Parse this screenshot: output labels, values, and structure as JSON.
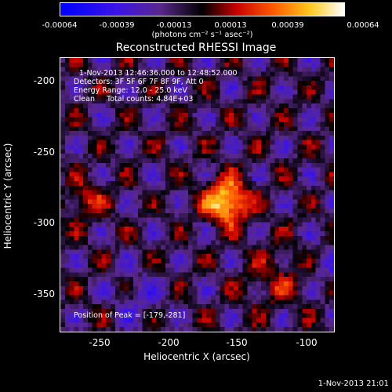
{
  "colorbar": {
    "ticks": [
      "-0.00064",
      "-0.00039",
      "-0.00013",
      "0.00013",
      "0.00039",
      "0.00064"
    ],
    "units": "(photons cm⁻² s⁻¹ asec⁻²)"
  },
  "image": {
    "title": "Reconstructed RHESSI Image",
    "time_range": "1-Nov-2013 12:46:36.000 to 12:48:52.000",
    "detectors": "Detectors: 3F 5F 6F 7F 8F 9F, Att 0",
    "energy": "Energy Range: 12.0 - 25.0 keV",
    "method": "Clean     Total counts: 4.84E+03",
    "peak": "Position of Peak = [-179,-281]"
  },
  "axes": {
    "xlabel": "Heliocentric X (arcsec)",
    "ylabel": "Heliocentric Y (arcsec)",
    "xticks": [
      "-250",
      "-200",
      "-150",
      "-100"
    ],
    "yticks": [
      "-200",
      "-250",
      "-300",
      "-350"
    ]
  },
  "footer": "1-Nov-2013 21:01"
}
